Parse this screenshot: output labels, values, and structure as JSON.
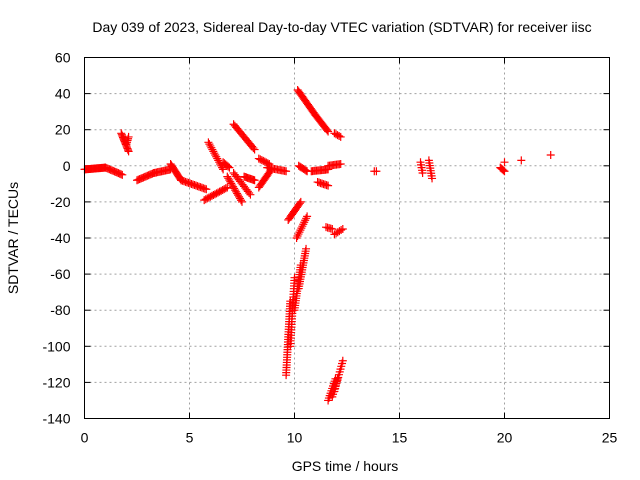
{
  "chart_data": {
    "type": "scatter",
    "title": "Day 039 of 2023, Sidereal Day-to-day VTEC variation (SDTVAR) for receiver iisc",
    "xlabel": "GPS time / hours",
    "ylabel": "SDTVAR / TECUs",
    "xlim": [
      0,
      25
    ],
    "ylim": [
      -140,
      60
    ],
    "xticks": [
      "0",
      "5",
      "10",
      "15",
      "20",
      "25"
    ],
    "yticks": [
      "60",
      "40",
      "20",
      "0",
      "-20",
      "-40",
      "-60",
      "-80",
      "-100",
      "-120",
      "-140"
    ],
    "grid": true,
    "marker": "+",
    "color": "#ff0000",
    "segments": [
      {
        "x0": 0.0,
        "y0": -2,
        "x1": 1.0,
        "y1": -1,
        "n": 24
      },
      {
        "x0": 1.0,
        "y0": -1,
        "x1": 1.8,
        "y1": -5,
        "n": 14
      },
      {
        "x0": 1.75,
        "y0": 18,
        "x1": 2.1,
        "y1": 8,
        "n": 14
      },
      {
        "x0": 2.0,
        "y0": 12,
        "x1": 2.1,
        "y1": 16,
        "n": 5
      },
      {
        "x0": 2.5,
        "y0": -8,
        "x1": 3.3,
        "y1": -4,
        "n": 14
      },
      {
        "x0": 3.3,
        "y0": -4,
        "x1": 4.1,
        "y1": -2,
        "n": 14
      },
      {
        "x0": 4.1,
        "y0": 1,
        "x1": 4.6,
        "y1": -8,
        "n": 14
      },
      {
        "x0": 4.6,
        "y0": -8,
        "x1": 5.8,
        "y1": -13,
        "n": 18
      },
      {
        "x0": 5.9,
        "y0": 13,
        "x1": 6.6,
        "y1": -2,
        "n": 16
      },
      {
        "x0": 5.7,
        "y0": -19,
        "x1": 6.8,
        "y1": -12,
        "n": 16
      },
      {
        "x0": 6.6,
        "y0": 2,
        "x1": 6.9,
        "y1": -1,
        "n": 6
      },
      {
        "x0": 7.1,
        "y0": 23,
        "x1": 8.1,
        "y1": 9,
        "n": 18
      },
      {
        "x0": 6.8,
        "y0": -6,
        "x1": 7.5,
        "y1": -20,
        "n": 16
      },
      {
        "x0": 7.1,
        "y0": -4,
        "x1": 7.9,
        "y1": -16,
        "n": 14
      },
      {
        "x0": 7.6,
        "y0": -6,
        "x1": 8.1,
        "y1": -8,
        "n": 10
      },
      {
        "x0": 8.3,
        "y0": -12,
        "x1": 8.9,
        "y1": -2,
        "n": 14
      },
      {
        "x0": 8.3,
        "y0": 4,
        "x1": 8.8,
        "y1": 1,
        "n": 8
      },
      {
        "x0": 8.7,
        "y0": -1,
        "x1": 9.6,
        "y1": -3,
        "n": 14
      },
      {
        "x0": 9.7,
        "y0": -30,
        "x1": 10.3,
        "y1": -20,
        "n": 14
      },
      {
        "x0": 10.1,
        "y0": -40,
        "x1": 10.6,
        "y1": -28,
        "n": 12
      },
      {
        "x0": 10.15,
        "y0": 42,
        "x1": 11.0,
        "y1": 28,
        "n": 20
      },
      {
        "x0": 11.0,
        "y0": 28,
        "x1": 11.6,
        "y1": 19,
        "n": 14
      },
      {
        "x0": 11.9,
        "y0": 18,
        "x1": 12.2,
        "y1": 16,
        "n": 5
      },
      {
        "x0": 10.2,
        "y0": 0,
        "x1": 10.6,
        "y1": -3,
        "n": 8
      },
      {
        "x0": 10.8,
        "y0": -3,
        "x1": 11.6,
        "y1": -2,
        "n": 14
      },
      {
        "x0": 11.6,
        "y0": 0,
        "x1": 12.2,
        "y1": 1,
        "n": 10
      },
      {
        "x0": 11.1,
        "y0": -9,
        "x1": 11.6,
        "y1": -11,
        "n": 8
      },
      {
        "x0": 11.5,
        "y0": -34,
        "x1": 11.8,
        "y1": -35,
        "n": 5
      },
      {
        "x0": 11.9,
        "y0": -38,
        "x1": 12.3,
        "y1": -35,
        "n": 6
      },
      {
        "x0": 9.6,
        "y0": -116,
        "x1": 9.8,
        "y1": -75,
        "n": 30
      },
      {
        "x0": 9.8,
        "y0": -100,
        "x1": 10.0,
        "y1": -62,
        "n": 26
      },
      {
        "x0": 10.0,
        "y0": -80,
        "x1": 10.3,
        "y1": -55,
        "n": 20
      },
      {
        "x0": 10.2,
        "y0": -68,
        "x1": 10.55,
        "y1": -46,
        "n": 18
      },
      {
        "x0": 11.6,
        "y0": -130,
        "x1": 11.95,
        "y1": -118,
        "n": 10
      },
      {
        "x0": 11.8,
        "y0": -128,
        "x1": 12.05,
        "y1": -118,
        "n": 8
      },
      {
        "x0": 11.9,
        "y0": -125,
        "x1": 12.3,
        "y1": -108,
        "n": 12
      },
      {
        "x0": 13.8,
        "y0": -3,
        "x1": 13.9,
        "y1": -3,
        "n": 2
      },
      {
        "x0": 16.0,
        "y0": 2,
        "x1": 16.1,
        "y1": -4,
        "n": 5
      },
      {
        "x0": 16.4,
        "y0": 3,
        "x1": 16.55,
        "y1": -7,
        "n": 8
      },
      {
        "x0": 19.8,
        "y0": -1,
        "x1": 20.0,
        "y1": -3,
        "n": 5
      },
      {
        "x0": 20.0,
        "y0": 2,
        "x1": 20.05,
        "y1": 2,
        "n": 1
      },
      {
        "x0": 20.8,
        "y0": 3,
        "x1": 20.85,
        "y1": 3,
        "n": 1
      },
      {
        "x0": 22.2,
        "y0": 6,
        "x1": 22.25,
        "y1": 6,
        "n": 1
      }
    ]
  }
}
